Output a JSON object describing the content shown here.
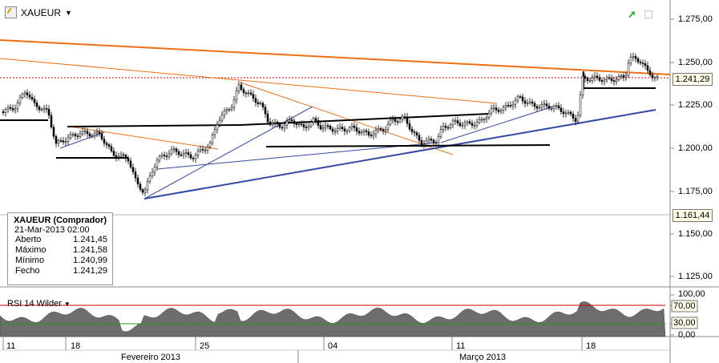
{
  "symbol": {
    "name": "XAUEUR",
    "caret": "▼",
    "icon": "pencil-icon"
  },
  "top_right_icons": [
    "trend-arrow-icon",
    "maximize-icon"
  ],
  "colors": {
    "orange": "#ef6f14",
    "blue": "#3448a5",
    "black": "#000000",
    "rsi_fill": "#6d6d6d",
    "rsi_high": "#cc0000",
    "rsi_low": "#1f9d1f"
  },
  "price_axis": {
    "labels": [
      "1.275,00",
      "1.250,00",
      "1.225,00",
      "1.200,00",
      "1.175,00",
      "1.150,00",
      "1.125,00"
    ]
  },
  "price_tags": {
    "current": "1.241,29",
    "cursor": "1.161,44"
  },
  "info_box": {
    "title": "XAUEUR (Comprador)",
    "date": "21-Mar-2013 02:00",
    "rows": [
      {
        "label": "Aberto",
        "value": "1.241,45"
      },
      {
        "label": "Máximo",
        "value": "1.241,58"
      },
      {
        "label": "Mínimo",
        "value": "1.240,99"
      },
      {
        "label": "Fecho",
        "value": "1.241,29"
      }
    ]
  },
  "rsi": {
    "label": "RSI 14 Wilder",
    "caret": "▼",
    "axis_labels": [
      "100,00",
      "70,00",
      "30,00",
      "0,00"
    ],
    "high_level_tag": "70,00",
    "low_level_tag": "30,00"
  },
  "date_axis": {
    "days": [
      "11",
      "18",
      "25",
      "04",
      "11",
      "18"
    ],
    "months": [
      "Fevereiro 2013",
      "Março 2013"
    ]
  }
}
